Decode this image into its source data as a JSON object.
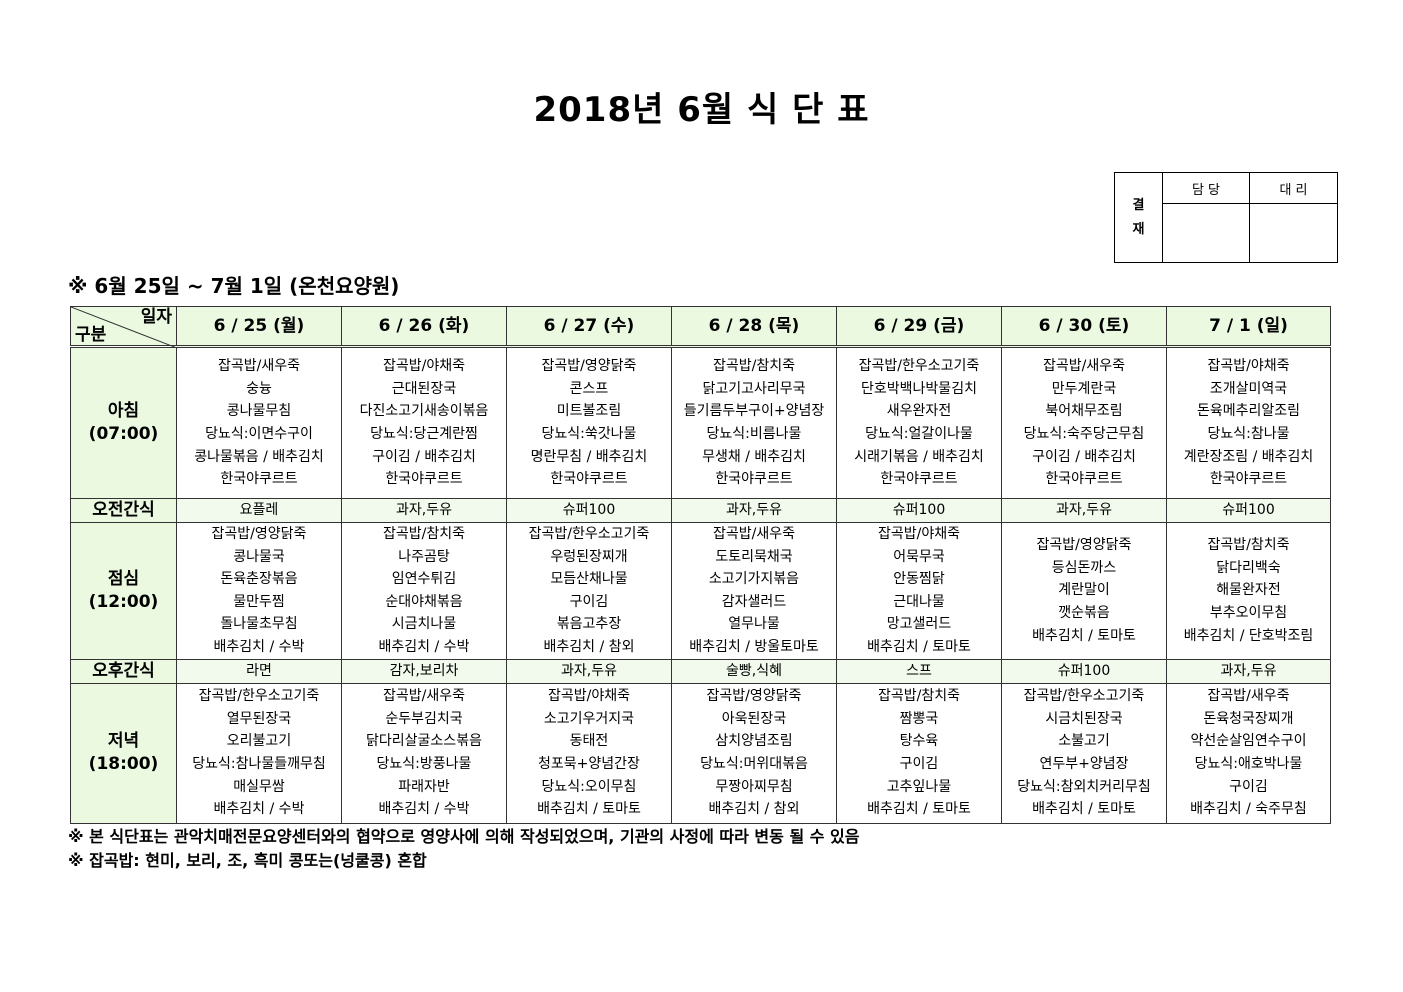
{
  "title": "2018년 6월 식 단 표",
  "approval": {
    "label_1": "결",
    "label_2": "재",
    "col1": "담 당",
    "col2": "대 리"
  },
  "period": "※ 6월 25일 ~ 7월 1일 (온천요양원)",
  "corner": {
    "top_right": "일자",
    "bottom_left": "구분"
  },
  "days": [
    "6 / 25 (월)",
    "6 / 26 (화)",
    "6 / 27 (수)",
    "6 / 28 (목)",
    "6 / 29 (금)",
    "6 / 30 (토)",
    "7 / 1 (일)"
  ],
  "rows": [
    {
      "label": [
        "아침",
        "(07:00)"
      ],
      "type": "meal",
      "cells": [
        [
          "잡곡밥/새우죽",
          "숭늉",
          "콩나물무침",
          "당뇨식:이면수구이",
          "콩나물볶음 / 배추김치",
          "한국야쿠르트"
        ],
        [
          "잡곡밥/야채죽",
          "근대된장국",
          "다진소고기새송이볶음",
          "당뇨식:당근계란찜",
          "구이김 / 배추김치",
          "한국야쿠르트"
        ],
        [
          "잡곡밥/영양닭죽",
          "콘스프",
          "미트볼조림",
          "당뇨식:쑥갓나물",
          "명란무침 / 배추김치",
          "한국야쿠르트"
        ],
        [
          "잡곡밥/참치죽",
          "닭고기고사리무국",
          "들기름두부구이+양념장",
          "당뇨식:비름나물",
          "무생채 / 배추김치",
          "한국야쿠르트"
        ],
        [
          "잡곡밥/한우소고기죽",
          "단호박백나박물김치",
          "새우완자전",
          "당뇨식:얼갈이나물",
          "시래기볶음 / 배추김치",
          "한국야쿠르트"
        ],
        [
          "잡곡밥/새우죽",
          "만두계란국",
          "북어채무조림",
          "당뇨식:숙주당근무침",
          "구이김 / 배추김치",
          "한국야쿠르트"
        ],
        [
          "잡곡밥/야채죽",
          "조개살미역국",
          "돈육메추리알조림",
          "당뇨식:참나물",
          "계란장조림 / 배추김치",
          "한국야쿠르트"
        ]
      ]
    },
    {
      "label": [
        "오전간식"
      ],
      "type": "snack",
      "cells": [
        [
          "요플레"
        ],
        [
          "과자,두유"
        ],
        [
          "슈퍼100"
        ],
        [
          "과자,두유"
        ],
        [
          "슈퍼100"
        ],
        [
          "과자,두유"
        ],
        [
          "슈퍼100"
        ]
      ]
    },
    {
      "label": [
        "점심",
        "(12:00)"
      ],
      "type": "meal",
      "cells": [
        [
          "잡곡밥/영양닭죽",
          "콩나물국",
          "돈육춘장볶음",
          "물만두찜",
          "돌나물초무침",
          "배추김치 / 수박"
        ],
        [
          "잡곡밥/참치죽",
          "나주곰탕",
          "임연수튀김",
          "순대야채볶음",
          "시금치나물",
          "배추김치 / 수박"
        ],
        [
          "잡곡밥/한우소고기죽",
          "우렁된장찌개",
          "모듬산채나물",
          "구이김",
          "볶음고추장",
          "배추김치 / 참외"
        ],
        [
          "잡곡밥/새우죽",
          "도토리묵채국",
          "소고기가지볶음",
          "감자샐러드",
          "열무나물",
          "배추김치 / 방울토마토"
        ],
        [
          "잡곡밥/야채죽",
          "어묵무국",
          "안동찜닭",
          "근대나물",
          "망고샐러드",
          "배추김치 / 토마토"
        ],
        [
          "잡곡밥/영양닭죽",
          "등심돈까스",
          "계란말이",
          "깻순볶음",
          "배추김치 / 토마토"
        ],
        [
          "잡곡밥/참치죽",
          "닭다리백숙",
          "해물완자전",
          "부추오이무침",
          "배추김치 / 단호박조림"
        ]
      ]
    },
    {
      "label": [
        "오후간식"
      ],
      "type": "snack",
      "cells": [
        [
          "라면"
        ],
        [
          "감자,보리차"
        ],
        [
          "과자,두유"
        ],
        [
          "술빵,식혜"
        ],
        [
          "스프"
        ],
        [
          "슈퍼100"
        ],
        [
          "과자,두유"
        ]
      ]
    },
    {
      "label": [
        "저녁",
        "(18:00)"
      ],
      "type": "meal",
      "cells": [
        [
          "잡곡밥/한우소고기죽",
          "열무된장국",
          "오리불고기",
          "당뇨식:참나물들깨무침",
          "매실무쌈",
          "배추김치 / 수박"
        ],
        [
          "잡곡밥/새우죽",
          "순두부김치국",
          "닭다리살굴소스볶음",
          "당뇨식:방풍나물",
          "파래자반",
          "배추김치 / 수박"
        ],
        [
          "잡곡밥/야채죽",
          "소고기우거지국",
          "동태전",
          "청포묵+양념간장",
          "당뇨식:오이무침",
          "배추김치 / 토마토"
        ],
        [
          "잡곡밥/영양닭죽",
          "아욱된장국",
          "삼치양념조림",
          "당뇨식:머위대볶음",
          "무짱아찌무침",
          "배추김치 / 참외"
        ],
        [
          "잡곡밥/참치죽",
          "짬뽕국",
          "탕수육",
          "구이김",
          "고추잎나물",
          "배추김치 / 토마토"
        ],
        [
          "잡곡밥/한우소고기죽",
          "시금치된장국",
          "소불고기",
          "연두부+양념장",
          "당뇨식:참외치커리무침",
          "배추김치 / 토마토"
        ],
        [
          "잡곡밥/새우죽",
          "돈육청국장찌개",
          "약선순살임연수구이",
          "당뇨식:애호박나물",
          "구이김",
          "배추김치 / 숙주무침"
        ]
      ]
    }
  ],
  "notes": [
    "※ 본 식단표는 관악치매전문요양센터와의 협약으로 영양사에 의해 작성되었으며, 기관의 사정에 따라 변동 될 수 있음",
    "※ 잡곡밥: 현미, 보리, 조, 흑미 콩또는(넝쿨콩) 혼합"
  ],
  "colors": {
    "header_bg": "#ebf9e1",
    "snack_bg": "#f1faec"
  }
}
